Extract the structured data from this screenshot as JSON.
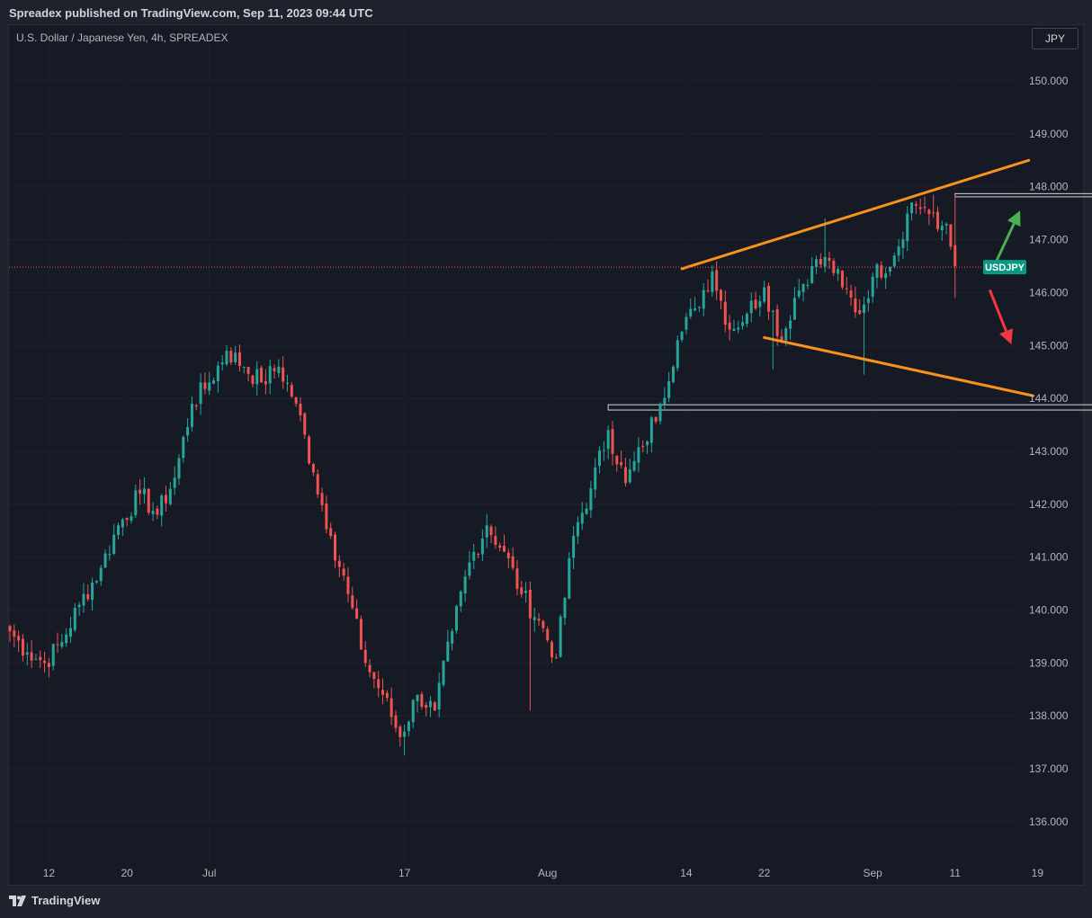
{
  "header": {
    "published_by": "Spreadex published on TradingView.com, Sep 11, 2023 09:44 UTC"
  },
  "symbol": {
    "description": "U.S. Dollar / Japanese Yen, 4h, SPREADEX"
  },
  "currency_badge": "JPY",
  "price_tag": {
    "label": "USDJPY",
    "value": 146.48,
    "color": "#089981"
  },
  "brand": {
    "name": "TradingView"
  },
  "colors": {
    "up": "#26a69a",
    "down": "#ef5350",
    "trendline": "#f7931a",
    "arrow_up": "#4caf50",
    "arrow_down": "#f23645",
    "zone": "#d1d4dc"
  },
  "chart_data": {
    "type": "candlestick",
    "title": "",
    "y_axis": {
      "ticks": [
        "150.000",
        "149.000",
        "148.000",
        "147.000",
        "146.000",
        "145.000",
        "144.000",
        "143.000",
        "142.000",
        "141.000",
        "140.000",
        "139.000",
        "138.000",
        "137.000",
        "136.000"
      ],
      "range": [
        135.2,
        150.55
      ]
    },
    "x_axis": {
      "ticks": [
        {
          "label": "12",
          "index": 9
        },
        {
          "label": "20",
          "index": 27
        },
        {
          "label": "Jul",
          "index": 46
        },
        {
          "label": "17",
          "index": 91
        },
        {
          "label": "Aug",
          "index": 124
        },
        {
          "label": "14",
          "index": 156
        },
        {
          "label": "22",
          "index": 174
        },
        {
          "label": "Sep",
          "index": 199
        },
        {
          "label": "11",
          "index": 218
        },
        {
          "label": "19",
          "index": 237
        }
      ]
    },
    "series": [
      {
        "kind": "ohlc",
        "close_anchors": [
          [
            0,
            139.6
          ],
          [
            4,
            139.2
          ],
          [
            8,
            139.0
          ],
          [
            12,
            139.4
          ],
          [
            16,
            140.1
          ],
          [
            21,
            140.8
          ],
          [
            25,
            141.6
          ],
          [
            30,
            142.2
          ],
          [
            34,
            141.8
          ],
          [
            38,
            142.5
          ],
          [
            42,
            143.9
          ],
          [
            46,
            144.3
          ],
          [
            50,
            144.9
          ],
          [
            54,
            144.6
          ],
          [
            58,
            144.3
          ],
          [
            62,
            144.6
          ],
          [
            66,
            143.9
          ],
          [
            70,
            142.6
          ],
          [
            74,
            141.4
          ],
          [
            78,
            140.3
          ],
          [
            82,
            139.0
          ],
          [
            86,
            138.4
          ],
          [
            90,
            137.6
          ],
          [
            94,
            138.4
          ],
          [
            98,
            138.1
          ],
          [
            102,
            139.6
          ],
          [
            106,
            140.9
          ],
          [
            110,
            141.6
          ],
          [
            114,
            141.1
          ],
          [
            118,
            140.3
          ],
          [
            122,
            139.8
          ],
          [
            126,
            139.1
          ],
          [
            130,
            141.4
          ],
          [
            134,
            142.3
          ],
          [
            138,
            143.4
          ],
          [
            142,
            142.4
          ],
          [
            146,
            143.1
          ],
          [
            150,
            143.9
          ],
          [
            154,
            145.1
          ],
          [
            158,
            145.7
          ],
          [
            162,
            146.4
          ],
          [
            166,
            145.3
          ],
          [
            170,
            145.6
          ],
          [
            174,
            146.1
          ],
          [
            178,
            145.1
          ],
          [
            181,
            145.9
          ],
          [
            185,
            146.5
          ],
          [
            189,
            146.6
          ],
          [
            192,
            146.1
          ],
          [
            196,
            145.6
          ],
          [
            199,
            146.3
          ],
          [
            204,
            146.7
          ],
          [
            208,
            147.7
          ],
          [
            211,
            147.6
          ],
          [
            214,
            147.2
          ],
          [
            216,
            147.3
          ],
          [
            218,
            146.5
          ]
        ],
        "volatility": 0.32,
        "spikes": [
          {
            "index": 91,
            "low": 137.25
          },
          {
            "index": 120,
            "low": 138.1
          },
          {
            "index": 125,
            "low": 139.0
          },
          {
            "index": 176,
            "low": 144.55
          },
          {
            "index": 188,
            "high": 147.4
          },
          {
            "index": 197,
            "low": 144.45
          },
          {
            "index": 213,
            "high": 147.85
          },
          {
            "index": 218,
            "high": 147.85,
            "low": 145.9
          }
        ]
      }
    ],
    "last_price": 146.48,
    "drawings": {
      "upper_trendline": {
        "from": [
          155,
          146.45
        ],
        "to": [
          235,
          148.5
        ]
      },
      "lower_trendline": {
        "from": [
          174,
          145.15
        ],
        "to": [
          236,
          144.05
        ]
      },
      "upper_zone": {
        "from_index": 218,
        "to_index": 251,
        "top": 147.87,
        "bottom": 147.81
      },
      "lower_zone": {
        "from_index": 138,
        "to_index": 251,
        "top": 143.88,
        "bottom": 143.78
      },
      "arrow_up": {
        "from": [
          227,
          146.5
        ],
        "to": [
          233,
          147.55
        ]
      },
      "arrow_down": {
        "from": [
          226,
          146.05
        ],
        "to": [
          231,
          145.02
        ]
      }
    }
  }
}
